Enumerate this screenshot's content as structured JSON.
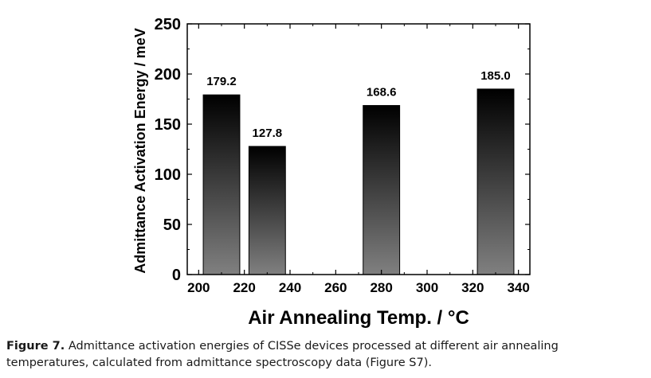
{
  "chart_data": {
    "type": "bar",
    "x": [
      210,
      230,
      280,
      330
    ],
    "values": [
      179.2,
      127.8,
      168.6,
      185.0
    ],
    "data_labels": [
      "179.2",
      "127.8",
      "168.6",
      "185.0"
    ],
    "xlabel": "Air Annealing Temp. / °C",
    "ylabel": "Admittance Activation Energy / meV",
    "xlim": [
      195,
      345
    ],
    "ylim": [
      0,
      250
    ],
    "xticks": [
      200,
      220,
      240,
      260,
      280,
      300,
      320,
      340
    ],
    "yticks": [
      0,
      50,
      100,
      150,
      200,
      250
    ],
    "bar_width": 16,
    "bar_gradient": [
      "#000000",
      "#808080"
    ],
    "grid": false,
    "legend": "none"
  },
  "caption": {
    "lead": "Figure 7.",
    "text": " Admittance activation energies of CISSe devices processed at different air annealing temperatures, calculated from admittance spectroscopy data (Figure S7)."
  }
}
